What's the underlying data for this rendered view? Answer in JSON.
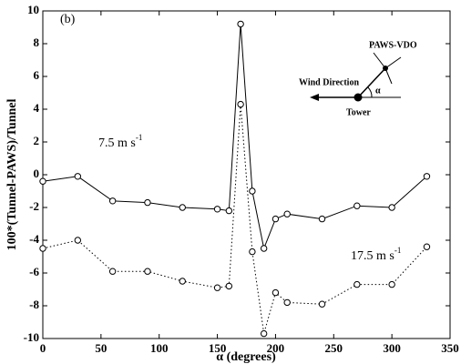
{
  "chart_data": {
    "type": "line",
    "xlabel": "α (degrees)",
    "ylabel": "100*(Tunnel-PAWS)/Tunnel",
    "x": [
      0,
      30,
      60,
      90,
      120,
      150,
      160,
      170,
      180,
      190,
      200,
      210,
      240,
      270,
      300,
      330
    ],
    "series": [
      {
        "name": "7.5 m s",
        "name_sup": "-1",
        "color": "#000000",
        "dash": "solid",
        "values": [
          -0.4,
          -0.1,
          -1.6,
          -1.7,
          -2.0,
          -2.1,
          -2.2,
          9.2,
          -1.0,
          -4.5,
          -2.7,
          -2.4,
          -2.7,
          -1.9,
          -2.0,
          -0.1
        ]
      },
      {
        "name": "17.5 m s",
        "name_sup": "-1",
        "color": "#000000",
        "dash": "dotted",
        "values": [
          -4.5,
          -4.0,
          -5.9,
          -5.9,
          -6.5,
          -6.9,
          -6.8,
          4.3,
          -4.7,
          -9.7,
          -7.2,
          -7.8,
          -7.9,
          -6.7,
          -6.7,
          -4.4
        ]
      }
    ],
    "xlim": [
      0,
      350
    ],
    "xticks": [
      0,
      50,
      100,
      150,
      200,
      250,
      300,
      350
    ],
    "ylim": [
      -10,
      10
    ],
    "yticks": [
      -10,
      -8,
      -6,
      -4,
      -2,
      0,
      2,
      4,
      6,
      8,
      10
    ],
    "panel_label": "(b)",
    "inset": {
      "top_label": "PAWS-VDO",
      "left_label": "Wind Direction",
      "bottom_label": "Tower",
      "angle_label": "α"
    }
  }
}
